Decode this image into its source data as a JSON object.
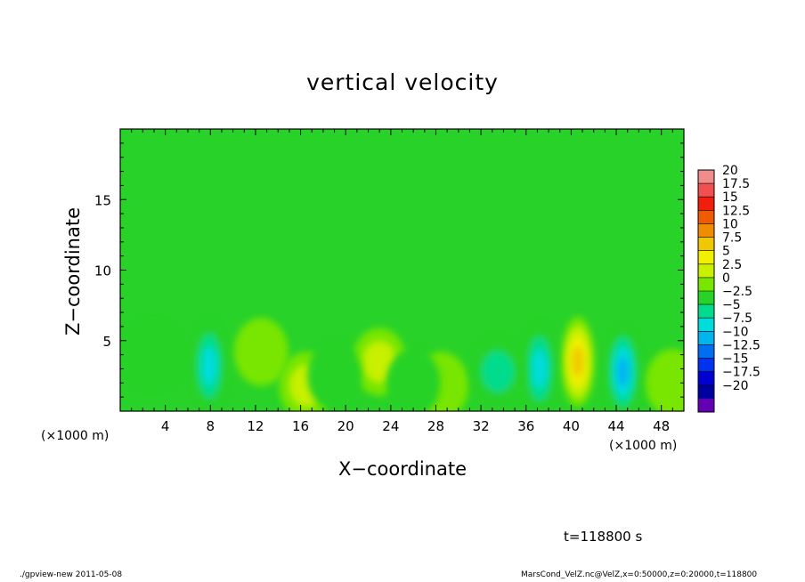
{
  "chart_data": {
    "type": "heatmap",
    "title": "vertical velocity",
    "xlabel": "X−coordinate",
    "ylabel": "Z−coordinate",
    "x_unit": "(×1000 m)",
    "xlim": [
      0,
      50
    ],
    "ylim": [
      0,
      20
    ],
    "x_ticks": [
      4,
      8,
      12,
      16,
      20,
      24,
      28,
      32,
      36,
      40,
      44,
      48
    ],
    "y_ticks": [
      5,
      10,
      15
    ],
    "x_tick_labels": [
      "4",
      "8",
      "12",
      "16",
      "20",
      "24",
      "28",
      "32",
      "36",
      "40",
      "44",
      "48"
    ],
    "y_tick_labels": [
      "5",
      "10",
      "15"
    ],
    "colorbar": {
      "levels": [
        20,
        17.5,
        15,
        12.5,
        10,
        7.5,
        5,
        2.5,
        0,
        -2.5,
        -5,
        -7.5,
        -10,
        -12.5,
        -15,
        -17.5,
        -20
      ],
      "labels": [
        "20",
        "17.5",
        "15",
        "12.5",
        "10",
        "7.5",
        "5",
        "2.5",
        "0",
        "−2.5",
        "−5",
        "−7.5",
        "−10",
        "−12.5",
        "−15",
        "−17.5",
        "−20"
      ],
      "colors": [
        "#f08c8c",
        "#f05050",
        "#f01e0a",
        "#f05a00",
        "#f08c00",
        "#f0c800",
        "#f0f000",
        "#c8f000",
        "#78e600",
        "#28d228",
        "#00dc8c",
        "#00dcdc",
        "#00b4f0",
        "#006ef0",
        "#0032f0",
        "#0000d2",
        "#0000a0",
        "#6400b4"
      ]
    },
    "background_color": "#28d228",
    "features": [
      {
        "x": 40.6,
        "z": 3.5,
        "w": 10,
        "kind": "updraft"
      },
      {
        "x": 44.6,
        "z": 2.8,
        "w": -9,
        "kind": "downdraft"
      },
      {
        "x": 37.2,
        "z": 3.0,
        "w": -7,
        "kind": "downdraft"
      },
      {
        "x": 7.9,
        "z": 3.2,
        "w": -7,
        "kind": "downdraft"
      },
      {
        "x": 23.0,
        "z": 3.5,
        "w": 4,
        "kind": "updraft"
      },
      {
        "x": 16.5,
        "z": 1.8,
        "w": 4,
        "kind": "updraft"
      },
      {
        "x": 12.5,
        "z": 4.2,
        "w": 3,
        "kind": "updraft"
      },
      {
        "x": 28.5,
        "z": 1.8,
        "w": 3,
        "kind": "updraft"
      },
      {
        "x": 19.0,
        "z": 2.5,
        "w": -3,
        "kind": "downdraft"
      },
      {
        "x": 26.0,
        "z": 2.0,
        "w": -3,
        "kind": "downdraft"
      },
      {
        "x": 33.5,
        "z": 2.8,
        "w": -4,
        "kind": "downdraft"
      },
      {
        "x": 3.0,
        "z": 4.0,
        "w": -3,
        "kind": "downdraft"
      },
      {
        "x": 49.0,
        "z": 2.0,
        "w": 3,
        "kind": "updraft"
      }
    ],
    "grid": false
  },
  "annotations": {
    "time": "t=118800 s",
    "footer_left": "./gpview-new   2011-05-08",
    "footer_right": "MarsCond_VelZ.nc@VelZ,x=0:50000,z=0:20000,t=118800"
  }
}
